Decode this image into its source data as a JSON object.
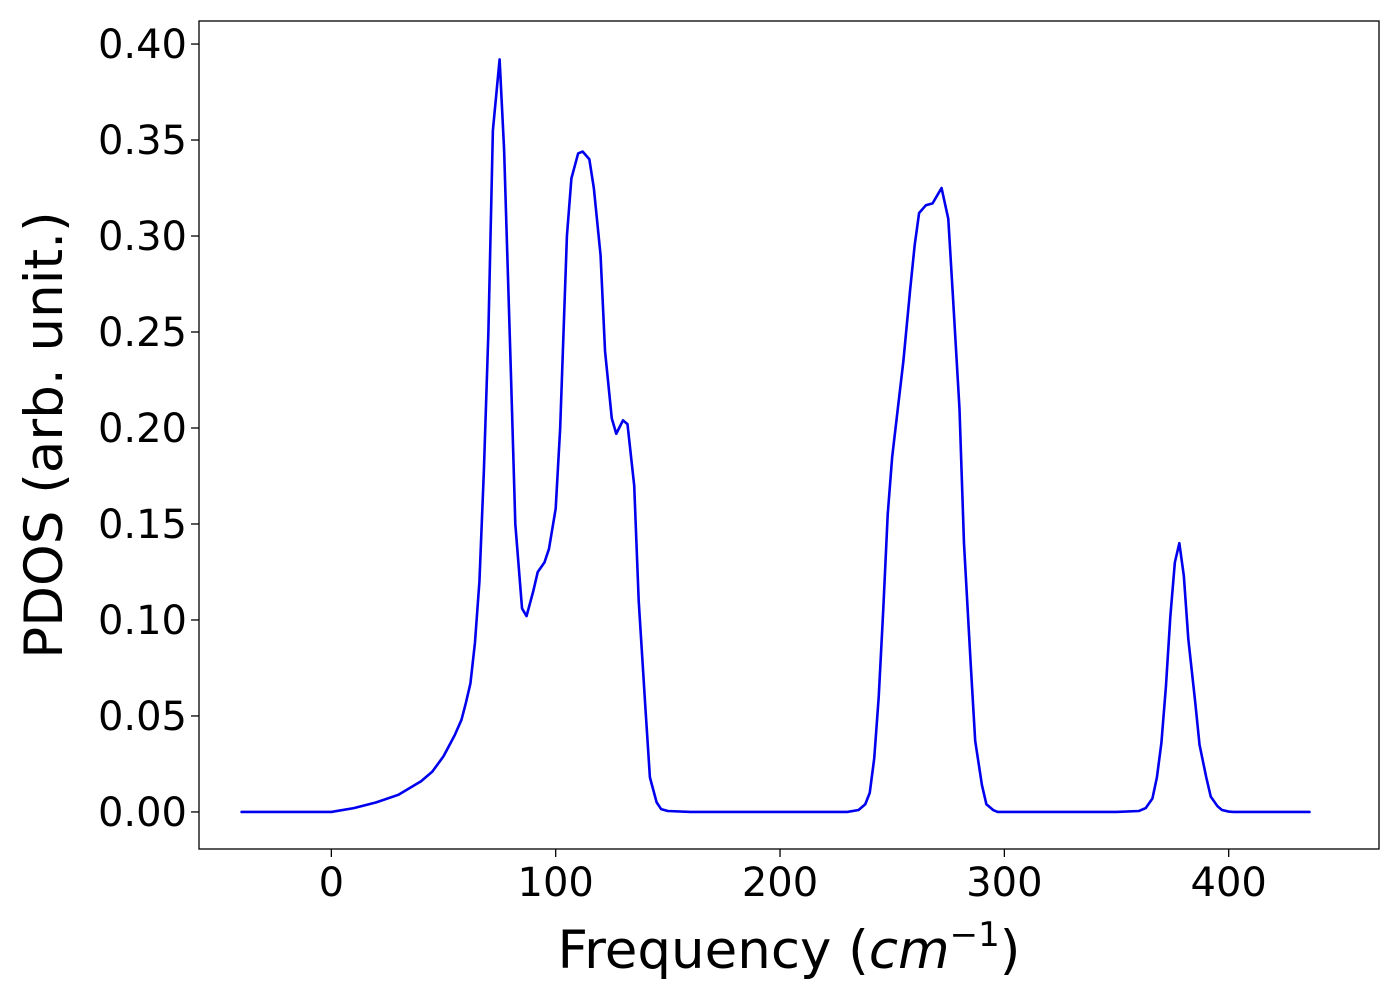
{
  "chart_data": {
    "type": "line",
    "title": "",
    "xlabel": {
      "main": "Frequency (",
      "unit": "cm",
      "sup": "−1",
      "close": ")"
    },
    "ylabel": "PDOS (arb. unit.)",
    "xlim": [
      -59,
      467
    ],
    "ylim": [
      -0.0193,
      0.412
    ],
    "x_ticks": [
      0,
      100,
      200,
      300,
      400
    ],
    "y_ticks": [
      0.0,
      0.05,
      0.1,
      0.15,
      0.2,
      0.25,
      0.3,
      0.35,
      0.4
    ],
    "x_tick_labels": [
      "0",
      "100",
      "200",
      "300",
      "400"
    ],
    "y_tick_labels": [
      "0.00",
      "0.05",
      "0.10",
      "0.15",
      "0.20",
      "0.25",
      "0.30",
      "0.35",
      "0.40"
    ],
    "grid": false,
    "legend": "none",
    "series": [
      {
        "color": "#0000ee",
        "x": [
          -40,
          -20,
          0,
          10,
          20,
          30,
          40,
          45,
          50,
          55,
          58,
          60,
          62,
          64,
          66,
          68,
          70,
          72,
          75,
          77,
          80,
          82,
          85,
          87,
          90,
          92,
          95,
          97,
          100,
          102,
          105,
          107,
          110,
          112,
          115,
          117,
          120,
          122,
          125,
          127,
          130,
          132,
          135,
          137,
          140,
          142,
          145,
          147,
          150,
          160,
          200,
          230,
          235,
          238,
          240,
          242,
          244,
          246,
          248,
          250,
          252,
          255,
          258,
          260,
          262,
          265,
          268,
          270,
          272,
          275,
          277,
          280,
          282,
          285,
          287,
          290,
          292,
          295,
          297,
          300,
          305,
          320,
          350,
          360,
          363,
          366,
          368,
          370,
          372,
          374,
          376,
          378,
          380,
          382,
          385,
          387,
          390,
          392,
          395,
          397,
          400,
          402,
          405,
          410,
          420,
          436
        ],
        "y": [
          0.0,
          0.0,
          0.0,
          0.002,
          0.005,
          0.009,
          0.016,
          0.021,
          0.029,
          0.04,
          0.048,
          0.057,
          0.067,
          0.088,
          0.12,
          0.178,
          0.25,
          0.355,
          0.392,
          0.345,
          0.23,
          0.15,
          0.106,
          0.102,
          0.115,
          0.125,
          0.13,
          0.137,
          0.158,
          0.2,
          0.3,
          0.33,
          0.343,
          0.344,
          0.34,
          0.325,
          0.29,
          0.24,
          0.205,
          0.197,
          0.204,
          0.202,
          0.17,
          0.11,
          0.054,
          0.018,
          0.005,
          0.0015,
          0.0005,
          0.0,
          0.0,
          0.0,
          0.001,
          0.004,
          0.01,
          0.028,
          0.06,
          0.105,
          0.155,
          0.185,
          0.205,
          0.235,
          0.272,
          0.295,
          0.312,
          0.316,
          0.317,
          0.321,
          0.325,
          0.309,
          0.27,
          0.21,
          0.14,
          0.077,
          0.037,
          0.014,
          0.004,
          0.001,
          0.0,
          0.0,
          0.0,
          0.0,
          0.0,
          0.0005,
          0.002,
          0.007,
          0.018,
          0.036,
          0.065,
          0.102,
          0.13,
          0.14,
          0.123,
          0.09,
          0.058,
          0.035,
          0.018,
          0.008,
          0.003,
          0.001,
          0.0002,
          0.0,
          0.0,
          0.0,
          0.0,
          0.0
        ]
      }
    ]
  }
}
